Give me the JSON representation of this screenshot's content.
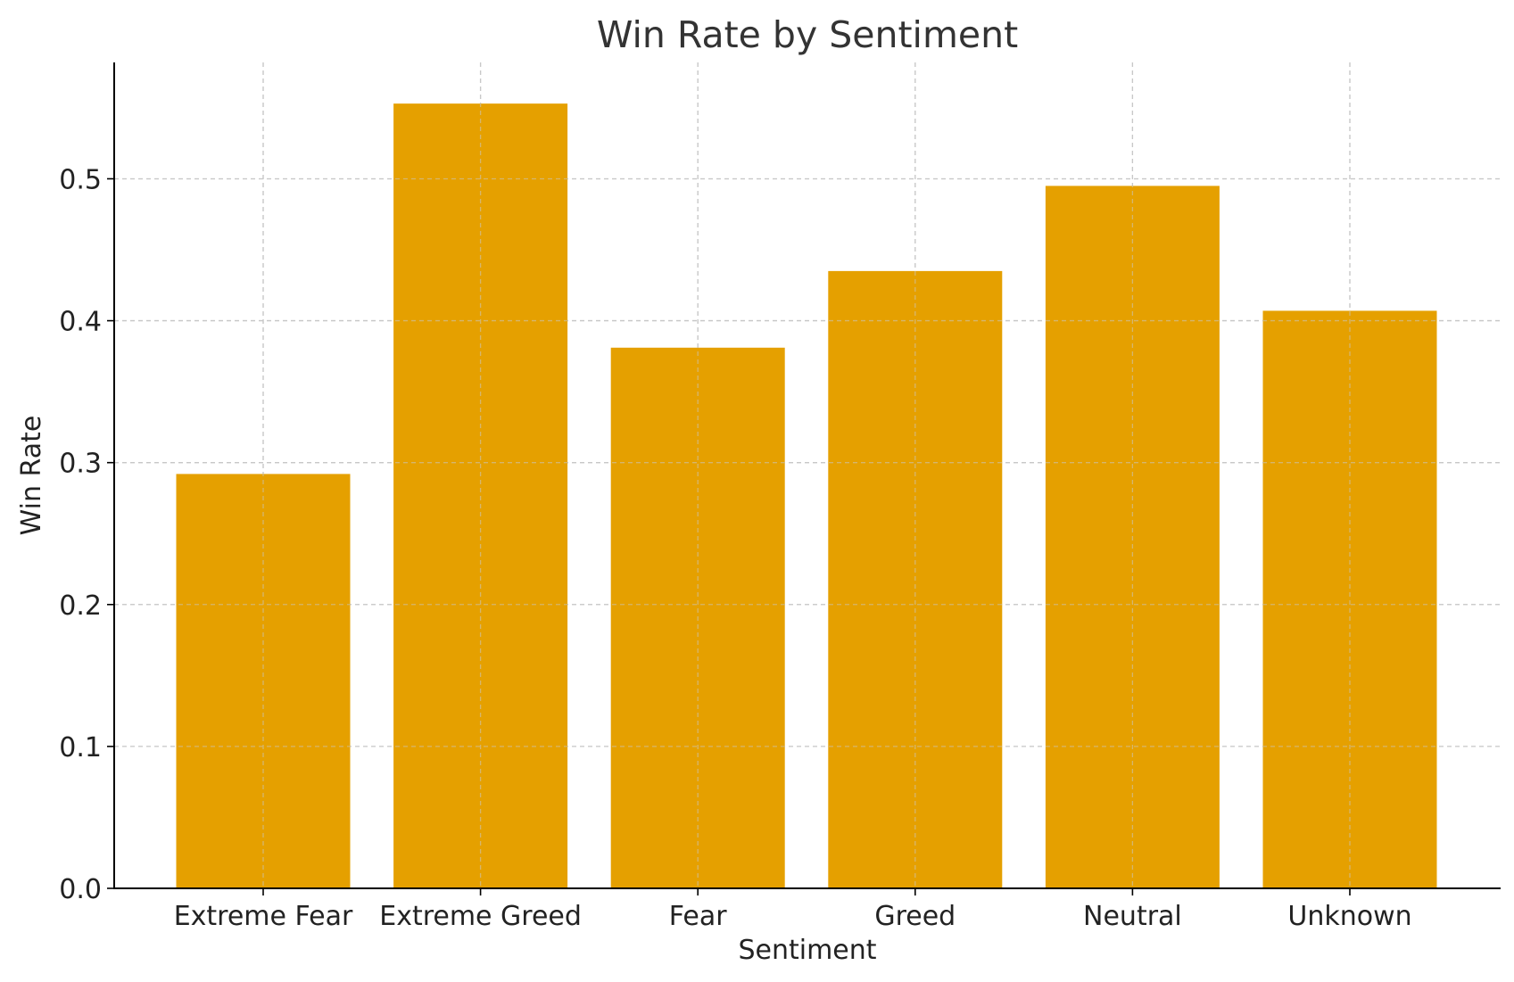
{
  "chart_data": {
    "type": "bar",
    "title": "Win Rate by Sentiment",
    "xlabel": "Sentiment",
    "ylabel": "Win Rate",
    "categories": [
      "Extreme Fear",
      "Extreme Greed",
      "Fear",
      "Greed",
      "Neutral",
      "Unknown"
    ],
    "values": [
      0.292,
      0.553,
      0.381,
      0.435,
      0.495,
      0.407
    ],
    "ylim": [
      0,
      0.582
    ],
    "yticks": [
      0.0,
      0.1,
      0.2,
      0.3,
      0.4,
      0.5
    ],
    "ytick_labels": [
      "0.0",
      "0.1",
      "0.2",
      "0.3",
      "0.4",
      "0.5"
    ],
    "bar_color": "#E5A000",
    "grid": true,
    "legend": false
  }
}
